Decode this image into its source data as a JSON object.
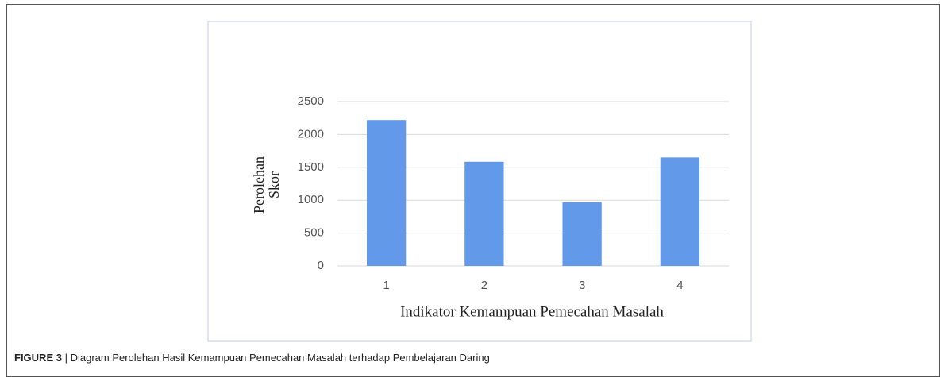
{
  "chart_data": {
    "type": "bar",
    "x_label": "Indikator Kemampuan Pemecahan Masalah",
    "y_label": "Perolehan Skor",
    "categories": [
      "1",
      "2",
      "3",
      "4"
    ],
    "values": [
      2220,
      1585,
      970,
      1650
    ],
    "color": "#6399e9",
    "ylim": [
      0,
      2500
    ],
    "yticks": [
      0,
      500,
      1000,
      1500,
      2000,
      2500
    ],
    "grid": true
  },
  "caption": {
    "label": "FIGURE 3",
    "text": "| Diagram Perolehan Hasil Kemampuan Pemecahan Masalah terhadap Pembelajaran Daring"
  }
}
